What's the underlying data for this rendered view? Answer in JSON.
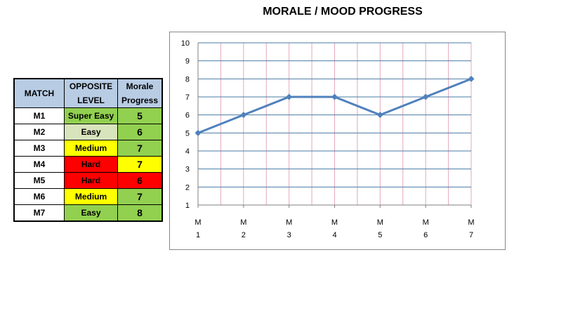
{
  "title": "MORALE / MOOD  PROGRESS",
  "table": {
    "headers": [
      "MATCH",
      "OPPOSITE LEVEL",
      "Morale Progress"
    ],
    "rows": [
      {
        "match": "M1",
        "level": "Super Easy",
        "level_color": "#92d050",
        "progress": "5",
        "progress_color": "#92d050"
      },
      {
        "match": "M2",
        "level": "Easy",
        "level_color": "#d8e4bc",
        "progress": "6",
        "progress_color": "#92d050"
      },
      {
        "match": "M3",
        "level": "Medium",
        "level_color": "#ffff00",
        "progress": "7",
        "progress_color": "#92d050"
      },
      {
        "match": "M4",
        "level": "Hard",
        "level_color": "#ff0000",
        "progress": "7",
        "progress_color": "#ffff00"
      },
      {
        "match": "M5",
        "level": "Hard",
        "level_color": "#ff0000",
        "progress": "6",
        "progress_color": "#ff0000"
      },
      {
        "match": "M6",
        "level": "Medium",
        "level_color": "#ffff00",
        "progress": "7",
        "progress_color": "#92d050"
      },
      {
        "match": "M7",
        "level": "Easy",
        "level_color": "#92d050",
        "progress": "8",
        "progress_color": "#92d050"
      }
    ]
  },
  "chart_data": {
    "type": "line",
    "title": "",
    "xlabel": "",
    "ylabel": "",
    "categories": [
      [
        "M",
        "1"
      ],
      [
        "M",
        "2"
      ],
      [
        "M",
        "3"
      ],
      [
        "M",
        "4"
      ],
      [
        "M",
        "5"
      ],
      [
        "M",
        "6"
      ],
      [
        "M",
        "7"
      ]
    ],
    "series": [
      {
        "values": [
          5,
          6,
          7,
          7,
          6,
          7,
          8
        ],
        "color": "#4f81bd"
      }
    ],
    "ylim": [
      1,
      10
    ],
    "yticks": [
      1,
      2,
      3,
      4,
      5,
      6,
      7,
      8,
      9,
      10
    ],
    "grid": true,
    "hgrid_color": "#4a7ba6",
    "vgrid_color": "#e3a8b8",
    "legend": "none"
  }
}
